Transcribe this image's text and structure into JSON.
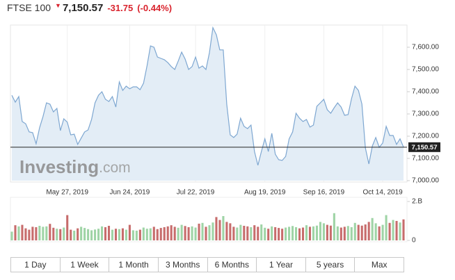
{
  "header": {
    "name": "FTSE 100",
    "price": "7,150.57",
    "change": "-31.75",
    "change_pct": "(-0.44%)"
  },
  "watermark": {
    "brand": "Investing",
    "suffix": ".com"
  },
  "chart_data": [
    {
      "type": "area",
      "color": "#7ea7d1",
      "fill": "#e3edf6",
      "categories": [
        null,
        null,
        null,
        null,
        null,
        null,
        null,
        null,
        null,
        null,
        null,
        null,
        null,
        null,
        null,
        null,
        "May 27, 2019",
        null,
        null,
        null,
        null,
        null,
        null,
        null,
        null,
        null,
        null,
        null,
        null,
        null,
        null,
        null,
        null,
        null,
        "Jun 24, 2019",
        null,
        null,
        null,
        null,
        null,
        null,
        null,
        null,
        null,
        null,
        null,
        null,
        null,
        null,
        null,
        null,
        null,
        null,
        "Jul 22, 2019",
        null,
        null,
        null,
        null,
        null,
        null,
        null,
        null,
        null,
        null,
        null,
        null,
        null,
        null,
        null,
        null,
        null,
        null,
        null,
        "Aug 19, 2019",
        null,
        null,
        null,
        null,
        null,
        null,
        null,
        null,
        null,
        null,
        null,
        null,
        null,
        null,
        null,
        null,
        "Sep 16, 2019",
        null,
        null,
        null,
        null,
        null,
        null,
        null,
        null,
        null,
        null,
        null,
        null,
        null,
        null,
        null,
        null,
        "Oct 14, 2019",
        null,
        null,
        null,
        null,
        null,
        null
      ],
      "values": [
        7384,
        7353,
        7378,
        7266,
        7256,
        7219,
        7216,
        7166,
        7238,
        7288,
        7350,
        7344,
        7309,
        7325,
        7225,
        7278,
        7263,
        7206,
        7209,
        7163,
        7191,
        7219,
        7228,
        7275,
        7350,
        7384,
        7400,
        7366,
        7356,
        7378,
        7331,
        7444,
        7406,
        7425,
        7413,
        7422,
        7422,
        7409,
        7438,
        7516,
        7606,
        7600,
        7556,
        7550,
        7544,
        7531,
        7513,
        7500,
        7538,
        7578,
        7547,
        7500,
        7513,
        7556,
        7506,
        7516,
        7500,
        7575,
        7688,
        7656,
        7588,
        7588,
        7344,
        7206,
        7194,
        7209,
        7281,
        7244,
        7234,
        7250,
        7131,
        7069,
        7131,
        7188,
        7131,
        7213,
        7119,
        7094,
        7091,
        7109,
        7188,
        7219,
        7303,
        7281,
        7266,
        7275,
        7241,
        7250,
        7334,
        7350,
        7366,
        7319,
        7303,
        7328,
        7350,
        7331,
        7294,
        7297,
        7369,
        7425,
        7406,
        7344,
        7147,
        7075,
        7156,
        7194,
        7150,
        7169,
        7244,
        7203,
        7203,
        7163,
        7188,
        7150.57
      ],
      "ylim": [
        7000,
        7700
      ],
      "yticks": [
        {
          "value": 7000,
          "label": "7,000.00"
        },
        {
          "value": 7100,
          "label": "7,100.00"
        },
        {
          "value": 7200,
          "label": "7,200.00"
        },
        {
          "value": 7300,
          "label": "7,300.00"
        },
        {
          "value": 7400,
          "label": "7,400.00"
        },
        {
          "value": 7500,
          "label": "7,500.00"
        },
        {
          "value": 7600,
          "label": "7,600.00"
        }
      ]
    },
    {
      "type": "bar",
      "colors": {
        "up": "#9fd4a6",
        "down": "#c76c6c"
      },
      "values": [
        0.45,
        0.78,
        0.72,
        0.8,
        0.62,
        0.55,
        0.7,
        0.68,
        0.75,
        0.7,
        0.72,
        0.85,
        0.65,
        0.6,
        0.58,
        0.66,
        1.3,
        0.55,
        0.5,
        0.62,
        0.7,
        0.64,
        0.58,
        0.52,
        0.56,
        0.6,
        0.72,
        0.68,
        0.75,
        0.55,
        0.6,
        0.58,
        0.62,
        0.55,
        0.8,
        0.52,
        0.5,
        0.55,
        0.66,
        0.6,
        0.62,
        0.7,
        0.58,
        0.64,
        0.68,
        0.72,
        0.78,
        0.7,
        0.65,
        0.8,
        0.74,
        0.68,
        0.72,
        0.66,
        0.86,
        0.9,
        0.7,
        0.78,
        0.92,
        1.2,
        1.05,
        1.25,
        0.95,
        0.88,
        0.7,
        0.66,
        0.8,
        0.75,
        0.72,
        0.68,
        0.78,
        0.7,
        0.82,
        0.65,
        0.6,
        0.72,
        0.68,
        0.64,
        0.6,
        0.66,
        0.7,
        0.74,
        0.68,
        0.62,
        0.66,
        0.78,
        0.7,
        0.72,
        0.76,
        0.95,
        0.88,
        0.8,
        0.76,
        1.4,
        0.72,
        0.66,
        0.7,
        0.74,
        0.68,
        0.9,
        0.8,
        0.76,
        0.82,
        0.95,
        1.15,
        0.88,
        0.72,
        0.8,
        1.3,
        0.9,
        1.05,
        1.0,
        0.92,
        1.08
      ],
      "ylim": [
        0,
        2
      ],
      "yticks": [
        0,
        {
          "value": 2,
          "label": "2.B"
        }
      ]
    }
  ],
  "ranges": [
    "1 Day",
    "1 Week",
    "1 Month",
    "3 Months",
    "6 Months",
    "1 Year",
    "5 years",
    "Max"
  ]
}
